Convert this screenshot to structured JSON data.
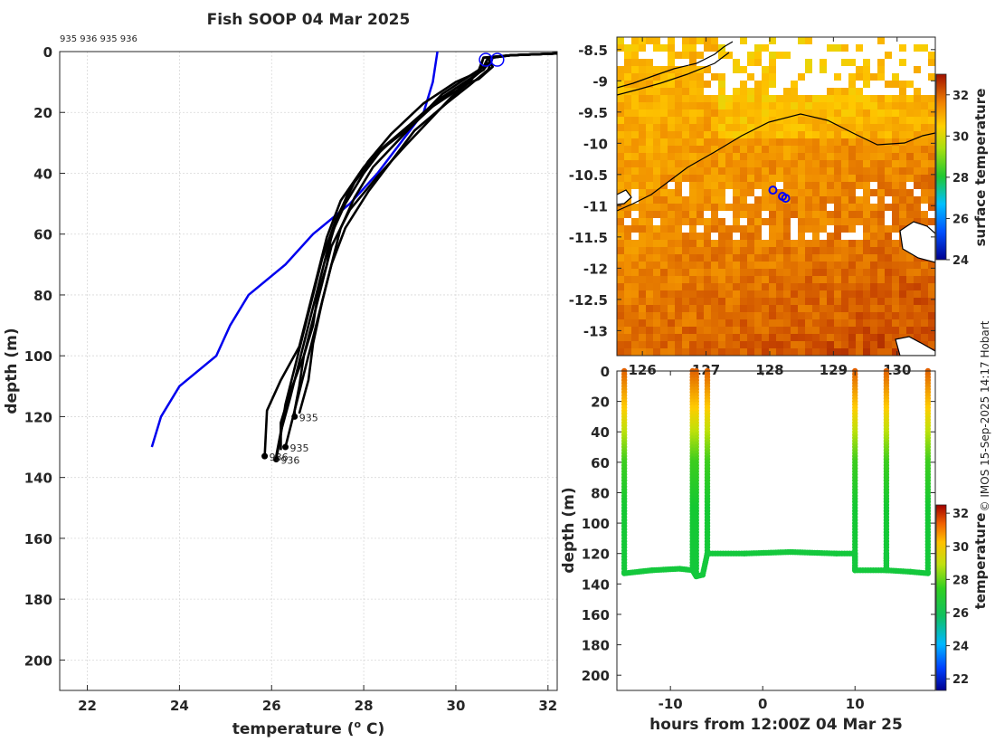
{
  "title": "Fish SOOP 04 Mar 2025",
  "profile_ids_text": "935 936 935 936",
  "credit": "© IMOS 15-Sep-2025 14:17 Hobart",
  "colors": {
    "profile": "#000000",
    "climatology": "#0000ee",
    "marker": "#0000ff"
  },
  "chart_data": [
    {
      "id": "profiles",
      "type": "line",
      "title": "Fish SOOP 04 Mar 2025",
      "xlabel": "temperature (",
      "xlabel_sup": "o",
      "xlabel_end": " C)",
      "ylabel": "depth (m)",
      "xlim": [
        21.4,
        32.2
      ],
      "ylim": [
        210,
        0
      ],
      "xticks": [
        22,
        24,
        26,
        28,
        30,
        32
      ],
      "yticks": [
        0,
        20,
        40,
        60,
        80,
        100,
        120,
        140,
        160,
        180,
        200
      ],
      "grid": true,
      "climatology": {
        "name": "climatology",
        "points": [
          [
            29.6,
            0
          ],
          [
            29.5,
            10
          ],
          [
            29.3,
            20
          ],
          [
            28.8,
            30
          ],
          [
            28.3,
            40
          ],
          [
            27.7,
            50
          ],
          [
            26.9,
            60
          ],
          [
            26.3,
            70
          ],
          [
            25.5,
            80
          ],
          [
            25.1,
            90
          ],
          [
            24.8,
            100
          ],
          [
            24.0,
            110
          ],
          [
            23.6,
            120
          ],
          [
            23.5,
            125
          ],
          [
            23.4,
            130
          ]
        ]
      },
      "profiles": [
        {
          "id": "935",
          "label": "935",
          "end_marker": [
            26.5,
            120
          ],
          "points": [
            [
              30.7,
              2
            ],
            [
              30.8,
              5
            ],
            [
              30.5,
              9
            ],
            [
              30.0,
              12
            ],
            [
              29.5,
              18
            ],
            [
              29.0,
              25
            ],
            [
              28.4,
              32
            ],
            [
              28.0,
              40
            ],
            [
              27.6,
              50
            ],
            [
              27.3,
              60
            ],
            [
              27.2,
              70
            ],
            [
              27.0,
              80
            ],
            [
              26.9,
              90
            ],
            [
              26.7,
              100
            ],
            [
              26.6,
              110
            ],
            [
              26.5,
              118
            ],
            [
              26.5,
              120
            ]
          ]
        },
        {
          "id": "936",
          "label": "936",
          "end_marker": [
            26.1,
            134
          ],
          "points": [
            [
              30.7,
              2
            ],
            [
              30.6,
              6
            ],
            [
              30.2,
              10
            ],
            [
              29.6,
              16
            ],
            [
              29.0,
              24
            ],
            [
              28.3,
              33
            ],
            [
              27.8,
              43
            ],
            [
              27.4,
              55
            ],
            [
              27.1,
              68
            ],
            [
              26.9,
              80
            ],
            [
              26.7,
              92
            ],
            [
              26.5,
              104
            ],
            [
              26.3,
              116
            ],
            [
              26.2,
              126
            ],
            [
              26.1,
              134
            ]
          ]
        },
        {
          "id": "935",
          "label": "935",
          "end_marker": [
            26.3,
            130
          ],
          "points": [
            [
              30.8,
              2
            ],
            [
              30.7,
              6
            ],
            [
              30.3,
              11
            ],
            [
              29.8,
              17
            ],
            [
              29.1,
              26
            ],
            [
              28.6,
              36
            ],
            [
              28.1,
              46
            ],
            [
              27.6,
              58
            ],
            [
              27.3,
              70
            ],
            [
              27.1,
              82
            ],
            [
              26.9,
              94
            ],
            [
              26.7,
              106
            ],
            [
              26.5,
              118
            ],
            [
              26.3,
              130
            ]
          ]
        },
        {
          "id": "936",
          "label": "936",
          "end_marker": [
            25.85,
            133
          ],
          "points": [
            [
              30.6,
              2
            ],
            [
              30.5,
              7
            ],
            [
              30.1,
              12
            ],
            [
              29.4,
              19
            ],
            [
              28.7,
              28
            ],
            [
              28.0,
              38
            ],
            [
              27.5,
              49
            ],
            [
              27.2,
              61
            ],
            [
              27.0,
              73
            ],
            [
              26.8,
              85
            ],
            [
              26.6,
              97
            ],
            [
              26.2,
              108
            ],
            [
              25.9,
              118
            ],
            [
              25.85,
              133
            ]
          ]
        },
        {
          "id": "p5",
          "label": "",
          "end_marker": null,
          "points": [
            [
              30.7,
              2
            ],
            [
              30.6,
              5
            ],
            [
              30.2,
              9
            ],
            [
              29.7,
              14
            ],
            [
              29.2,
              22
            ],
            [
              28.7,
              30
            ],
            [
              28.2,
              38
            ],
            [
              27.8,
              48
            ],
            [
              27.5,
              58
            ],
            [
              27.3,
              70
            ],
            [
              27.1,
              82
            ],
            [
              26.9,
              96
            ],
            [
              26.8,
              108
            ],
            [
              26.6,
              119
            ]
          ]
        },
        {
          "id": "p6",
          "label": "",
          "end_marker": null,
          "points": [
            [
              30.8,
              2
            ],
            [
              30.6,
              6
            ],
            [
              30.0,
              10
            ],
            [
              29.3,
              17
            ],
            [
              28.6,
              27
            ],
            [
              28.1,
              36
            ],
            [
              27.7,
              45
            ],
            [
              27.4,
              56
            ],
            [
              27.2,
              66
            ],
            [
              27.0,
              78
            ],
            [
              26.8,
              90
            ],
            [
              26.6,
              102
            ],
            [
              26.4,
              114
            ],
            [
              26.2,
              125
            ],
            [
              26.1,
              133
            ]
          ]
        },
        {
          "id": "p7",
          "label": "",
          "end_marker": null,
          "points": [
            [
              30.6,
              2
            ],
            [
              30.5,
              6
            ],
            [
              30.3,
              10
            ],
            [
              29.9,
              15
            ],
            [
              29.4,
              23
            ],
            [
              28.9,
              31
            ],
            [
              28.3,
              41
            ],
            [
              27.7,
              52
            ],
            [
              27.3,
              64
            ],
            [
              27.1,
              76
            ],
            [
              26.9,
              88
            ],
            [
              26.7,
              100
            ],
            [
              26.4,
              112
            ],
            [
              26.2,
              122
            ],
            [
              26.2,
              131
            ]
          ]
        }
      ],
      "surface_markers": [
        [
          30.65,
          1.5
        ],
        [
          30.9,
          1.5
        ]
      ]
    },
    {
      "id": "sst_map",
      "type": "heatmap",
      "yticks": [
        "-8.5",
        "-9",
        "-9.5",
        "-10",
        "-10.5",
        "-11",
        "-11.5",
        "-12",
        "-12.5",
        "-13"
      ],
      "xticks": [
        "126",
        "127",
        "128",
        "129",
        "130"
      ],
      "ylim": [
        -13.4,
        -8.3
      ],
      "xlim": [
        125.6,
        130.6
      ],
      "colorbar": {
        "label": "surface temperature",
        "ticks": [
          32,
          30,
          28,
          26,
          24
        ],
        "range": [
          24,
          33
        ]
      },
      "tracks": [
        [
          128.05,
          -10.75
        ],
        [
          128.2,
          -10.85
        ],
        [
          128.25,
          -10.88
        ]
      ]
    },
    {
      "id": "time_depth",
      "type": "scatter",
      "xlabel": "hours from 12:00Z 04 Mar 25",
      "ylabel": "depth (m)",
      "xlim": [
        -15.8,
        18.7
      ],
      "ylim": [
        210,
        0
      ],
      "xticks": [
        "-10",
        "0",
        "10"
      ],
      "xtick_values": [
        -10,
        0,
        10
      ],
      "yticks": [
        0,
        20,
        40,
        60,
        80,
        100,
        120,
        140,
        160,
        180,
        200
      ],
      "colorbar": {
        "label": "temperature",
        "ticks": [
          32,
          30,
          28,
          26,
          24,
          22
        ],
        "range": [
          21.3,
          32.5
        ]
      },
      "casts": [
        {
          "hour": -15.0,
          "max_depth": 133
        },
        {
          "hour": -7.6,
          "max_depth": 131
        },
        {
          "hour": -7.2,
          "max_depth": 135
        },
        {
          "hour": -6.0,
          "max_depth": 120
        },
        {
          "hour": 10.0,
          "max_depth": 131
        },
        {
          "hour": 13.4,
          "max_depth": 120
        },
        {
          "hour": 17.9,
          "max_depth": 133
        }
      ],
      "bottom_trace": [
        [
          -15.0,
          133
        ],
        [
          -12,
          131
        ],
        [
          -9,
          130
        ],
        [
          -7.6,
          131
        ],
        [
          -7.2,
          135
        ],
        [
          -6.5,
          134
        ],
        [
          -6.0,
          120
        ],
        [
          -2,
          120
        ],
        [
          3,
          119
        ],
        [
          8,
          120
        ],
        [
          10.0,
          120
        ],
        [
          10.0,
          131
        ],
        [
          13.4,
          131
        ],
        [
          13.4,
          120
        ],
        [
          13.4,
          131
        ],
        [
          16,
          132
        ],
        [
          17.9,
          133
        ]
      ]
    }
  ]
}
